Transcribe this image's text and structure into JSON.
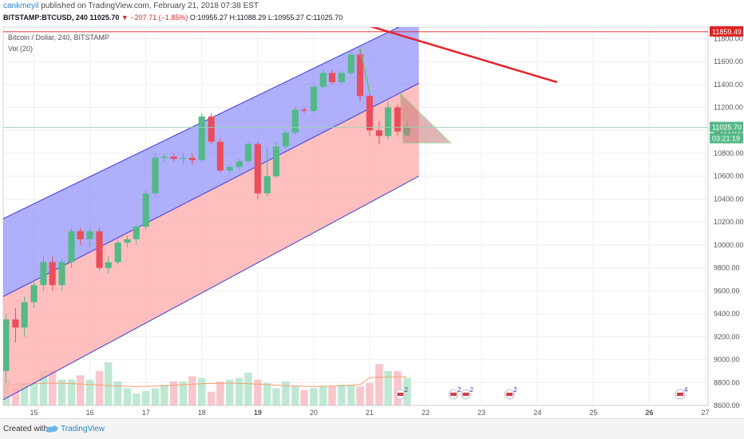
{
  "header": {
    "author": "cankmeyil",
    "published": "published on TradingView.com, February 21, 2018 07:38 EST",
    "symbol": "BITSTAMP:BTCUSD, 240",
    "last": "11025.70",
    "change": "▼ −207.71 (−1.85%)",
    "ohlc": "O:10955.27  H:11088.29  L:10955.27  C:11025.70"
  },
  "series_label": "Bitcoin / Dollar, 240, BITSTAMP",
  "volume_label": "Vol (20)",
  "price_tags": {
    "resistance": "11859.49",
    "last": "11025.70",
    "countdown": "03:21:19"
  },
  "footer": {
    "created": "Created with",
    "brand": "TradingView"
  },
  "event_badges": [
    "2",
    "2",
    "2",
    "2",
    "4"
  ],
  "colors": {
    "up": "#53b987",
    "down": "#eb4d5c",
    "channel_upper": "#8d8dfa",
    "channel_lower": "#ffa9a9",
    "trend": "#e8232a",
    "triangle": "#6cc26c",
    "price_line": "#e02020",
    "last_tag": "#53b987"
  },
  "chart_data": {
    "type": "candlestick",
    "title": "Bitcoin / Dollar, 240, BITSTAMP",
    "x_tick_labels": [
      "15",
      "16",
      "17",
      "18",
      "19",
      "20",
      "21",
      "22",
      "23",
      "24",
      "25",
      "26",
      "27"
    ],
    "y_tick_labels": [
      "8600.00",
      "8800.00",
      "9000.00",
      "9200.00",
      "9400.00",
      "9600.00",
      "9800.00",
      "10000.00",
      "10200.00",
      "10400.00",
      "10600.00",
      "10800.00",
      "11000.00",
      "11200.00",
      "11400.00",
      "11600.00",
      "11800.00"
    ],
    "ylim": [
      8600,
      11900
    ],
    "xlim": [
      14.45,
      27.05
    ],
    "resistance": 11859.49,
    "last_price": 11025.7,
    "candles": [
      {
        "t": 14.5,
        "o": 8900,
        "h": 9400,
        "l": 8800,
        "c": 9350
      },
      {
        "t": 14.67,
        "o": 9350,
        "h": 9450,
        "l": 9150,
        "c": 9280
      },
      {
        "t": 14.83,
        "o": 9280,
        "h": 9550,
        "l": 9200,
        "c": 9500
      },
      {
        "t": 15.0,
        "o": 9500,
        "h": 9700,
        "l": 9450,
        "c": 9650
      },
      {
        "t": 15.17,
        "o": 9650,
        "h": 9900,
        "l": 9600,
        "c": 9850
      },
      {
        "t": 15.33,
        "o": 9850,
        "h": 9900,
        "l": 9600,
        "c": 9650
      },
      {
        "t": 15.5,
        "o": 9650,
        "h": 9880,
        "l": 9600,
        "c": 9850
      },
      {
        "t": 15.67,
        "o": 9850,
        "h": 10150,
        "l": 9800,
        "c": 10120
      },
      {
        "t": 15.83,
        "o": 10120,
        "h": 10150,
        "l": 10000,
        "c": 10050
      },
      {
        "t": 16.0,
        "o": 10050,
        "h": 10150,
        "l": 9980,
        "c": 10120
      },
      {
        "t": 16.17,
        "o": 10120,
        "h": 10150,
        "l": 9780,
        "c": 9800
      },
      {
        "t": 16.33,
        "o": 9800,
        "h": 9900,
        "l": 9750,
        "c": 9850
      },
      {
        "t": 16.5,
        "o": 9850,
        "h": 10050,
        "l": 9830,
        "c": 10020
      },
      {
        "t": 16.67,
        "o": 10020,
        "h": 10080,
        "l": 9980,
        "c": 10050
      },
      {
        "t": 16.83,
        "o": 10050,
        "h": 10180,
        "l": 10000,
        "c": 10160
      },
      {
        "t": 17.0,
        "o": 10160,
        "h": 10480,
        "l": 10140,
        "c": 10450
      },
      {
        "t": 17.17,
        "o": 10450,
        "h": 10800,
        "l": 10420,
        "c": 10760
      },
      {
        "t": 17.33,
        "o": 10760,
        "h": 10800,
        "l": 10720,
        "c": 10770
      },
      {
        "t": 17.5,
        "o": 10770,
        "h": 10800,
        "l": 10730,
        "c": 10750
      },
      {
        "t": 17.67,
        "o": 10750,
        "h": 10800,
        "l": 10700,
        "c": 10760
      },
      {
        "t": 17.83,
        "o": 10760,
        "h": 10800,
        "l": 10700,
        "c": 10740
      },
      {
        "t": 18.0,
        "o": 10740,
        "h": 11150,
        "l": 10720,
        "c": 11120
      },
      {
        "t": 18.17,
        "o": 11120,
        "h": 11150,
        "l": 10880,
        "c": 10900
      },
      {
        "t": 18.33,
        "o": 10900,
        "h": 10930,
        "l": 10630,
        "c": 10650
      },
      {
        "t": 18.5,
        "o": 10650,
        "h": 10700,
        "l": 10620,
        "c": 10680
      },
      {
        "t": 18.67,
        "o": 10680,
        "h": 10750,
        "l": 10650,
        "c": 10730
      },
      {
        "t": 18.83,
        "o": 10730,
        "h": 10900,
        "l": 10720,
        "c": 10880
      },
      {
        "t": 19.0,
        "o": 10880,
        "h": 10900,
        "l": 10400,
        "c": 10450
      },
      {
        "t": 19.17,
        "o": 10450,
        "h": 10850,
        "l": 10420,
        "c": 10600
      },
      {
        "t": 19.33,
        "o": 10600,
        "h": 10900,
        "l": 10580,
        "c": 10860
      },
      {
        "t": 19.5,
        "o": 10860,
        "h": 11000,
        "l": 10840,
        "c": 10980
      },
      {
        "t": 19.67,
        "o": 10980,
        "h": 11200,
        "l": 10960,
        "c": 11180
      },
      {
        "t": 19.83,
        "o": 11180,
        "h": 11200,
        "l": 11150,
        "c": 11170
      },
      {
        "t": 20.0,
        "o": 11170,
        "h": 11400,
        "l": 11150,
        "c": 11380
      },
      {
        "t": 20.17,
        "o": 11380,
        "h": 11520,
        "l": 11360,
        "c": 11500
      },
      {
        "t": 20.33,
        "o": 11500,
        "h": 11530,
        "l": 11400,
        "c": 11420
      },
      {
        "t": 20.5,
        "o": 11420,
        "h": 11520,
        "l": 11400,
        "c": 11500
      },
      {
        "t": 20.67,
        "o": 11500,
        "h": 11680,
        "l": 11480,
        "c": 11660
      },
      {
        "t": 20.83,
        "o": 11660,
        "h": 11720,
        "l": 11250,
        "c": 11300
      },
      {
        "t": 21.0,
        "o": 11300,
        "h": 11320,
        "l": 10950,
        "c": 11000
      },
      {
        "t": 21.17,
        "o": 11000,
        "h": 11080,
        "l": 10880,
        "c": 10950
      },
      {
        "t": 21.33,
        "o": 10950,
        "h": 11250,
        "l": 10920,
        "c": 11200
      },
      {
        "t": 21.5,
        "o": 11200,
        "h": 11230,
        "l": 10950,
        "c": 10990
      },
      {
        "t": 21.67,
        "o": 10955.27,
        "h": 11088.29,
        "l": 10955.27,
        "c": 11025.7
      }
    ],
    "volume_max": 100,
    "volumes": [
      30,
      20,
      25,
      25,
      40,
      40,
      30,
      30,
      35,
      30,
      40,
      50,
      28,
      20,
      14,
      17,
      20,
      24,
      28,
      28,
      34,
      32,
      16,
      28,
      30,
      32,
      38,
      30,
      26,
      20,
      28,
      22,
      18,
      20,
      22,
      22,
      24,
      24,
      22,
      26,
      48,
      40,
      40,
      32
    ],
    "channel": {
      "upper_band": [
        [
          14.45,
          10230
        ],
        [
          21.88,
          11985
        ]
      ],
      "midline": [
        [
          14.45,
          9550
        ],
        [
          21.88,
          11410
        ]
      ],
      "lower_band": [
        [
          14.45,
          8650
        ],
        [
          21.88,
          10600
        ]
      ]
    },
    "trendline": [
      [
        20.45,
        11990
      ],
      [
        24.35,
        11420
      ]
    ],
    "triangle": [
      [
        21.55,
        11320
      ],
      [
        22.45,
        10890
      ],
      [
        21.6,
        10890
      ]
    ]
  }
}
